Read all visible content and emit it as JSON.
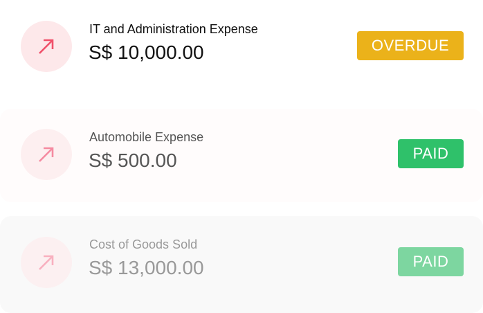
{
  "items": [
    {
      "title": "IT and Administration Expense",
      "amount": "S$ 10,000.00",
      "status": "OVERDUE",
      "status_color": "#ebb21a",
      "icon": "arrow-up-right-icon"
    },
    {
      "title": "Automobile Expense",
      "amount": "S$ 500.00",
      "status": "PAID",
      "status_color": "#2fc16a",
      "icon": "arrow-up-right-icon"
    },
    {
      "title": "Cost of Goods Sold",
      "amount": "S$ 13,000.00",
      "status": "PAID",
      "status_color": "#7dd6a0",
      "icon": "arrow-up-right-icon"
    }
  ]
}
